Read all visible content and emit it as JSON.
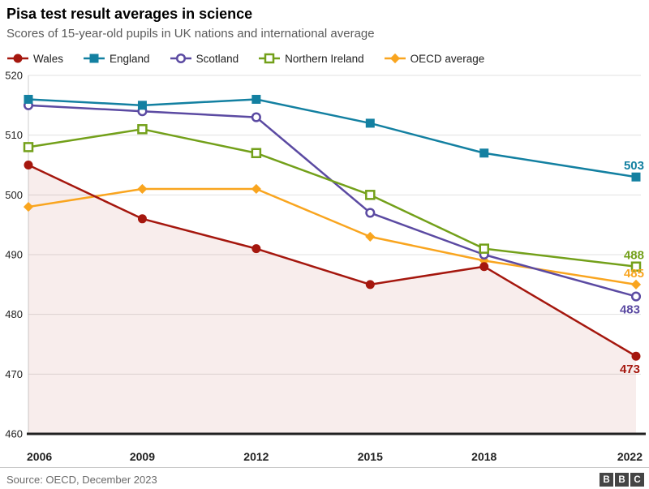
{
  "header": {
    "title": "Pisa test result averages in science",
    "subtitle": "Scores of 15-year-old pupils in UK nations and international average"
  },
  "chart_data": {
    "type": "line",
    "x": [
      2006,
      2009,
      2012,
      2015,
      2018,
      2022
    ],
    "x_tick_labels": [
      "2006",
      "2009",
      "2012",
      "2015",
      "2018",
      "2022"
    ],
    "ylim": [
      460,
      520
    ],
    "yticks": [
      460,
      470,
      480,
      490,
      500,
      510,
      520
    ],
    "grid": "horizontal-only",
    "legend_position": "top",
    "series": [
      {
        "name": "Wales",
        "color": "#a5170e",
        "marker": "circle-filled",
        "values": [
          505,
          496,
          491,
          485,
          488,
          473
        ],
        "end_label": "473",
        "end_label_position": "below",
        "area_fill": "rgba(165,23,14,0.08)"
      },
      {
        "name": "England",
        "color": "#1380a1",
        "marker": "square-filled",
        "values": [
          516,
          515,
          516,
          512,
          507,
          503
        ],
        "end_label": "503",
        "end_label_position": "above"
      },
      {
        "name": "Scotland",
        "color": "#5b4aa2",
        "marker": "circle-open",
        "values": [
          515,
          514,
          513,
          497,
          490,
          483
        ],
        "end_label": "483",
        "end_label_position": "below"
      },
      {
        "name": "Northern Ireland",
        "color": "#73a01a",
        "marker": "square-open",
        "values": [
          508,
          511,
          507,
          500,
          491,
          488
        ],
        "end_label": "488",
        "end_label_position": "above"
      },
      {
        "name": "OECD average",
        "color": "#f9a51f",
        "marker": "diamond-filled",
        "values": [
          498,
          501,
          501,
          493,
          489,
          485
        ],
        "end_label": "485",
        "end_label_position": "above"
      }
    ]
  },
  "footer": {
    "source": "Source: OECD, December 2023",
    "logo_letters": [
      "B",
      "B",
      "C"
    ]
  }
}
